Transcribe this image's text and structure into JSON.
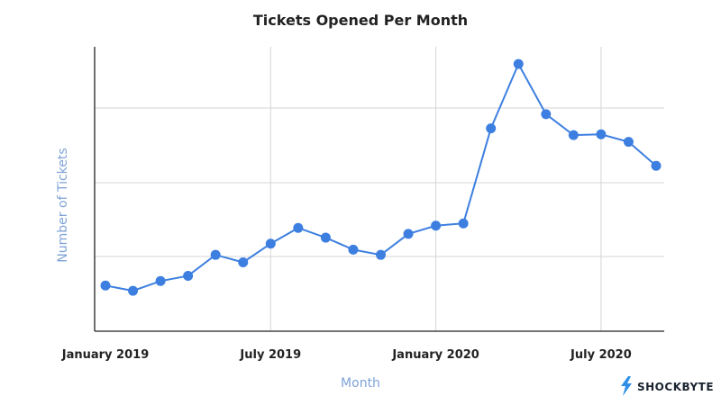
{
  "colors": {
    "series": "#3d7fe0",
    "axis_title": "#7fa3d6",
    "grid": "#d5d5d5",
    "logo_bolt": "#2f8fe6"
  },
  "brand": {
    "name": "SHOCKBYTE",
    "icon": "lightning-bolt-icon"
  },
  "chart_data": {
    "type": "line",
    "title": "Tickets Opened Per Month",
    "xlabel": "Month",
    "ylabel": "Number of Tickets",
    "grid": true,
    "y_tick_labels_visible": false,
    "x_ticks": [
      "January 2019",
      "July 2019",
      "January 2020",
      "July 2020"
    ],
    "categories": [
      "January 2019",
      "February 2019",
      "March 2019",
      "April 2019",
      "May 2019",
      "June 2019",
      "July 2019",
      "August 2019",
      "September 2019",
      "October 2019",
      "November 2019",
      "December 2019",
      "January 2020",
      "February 2020",
      "March 2020",
      "April 2020",
      "May 2020",
      "June 2020",
      "July 2020",
      "August 2020",
      "September 2020"
    ],
    "values": [
      61,
      54,
      67,
      74,
      102,
      92,
      117,
      138,
      125,
      109,
      102,
      130,
      141,
      144,
      271,
      357,
      290,
      262,
      263,
      253,
      221
    ],
    "ylim": [
      0,
      380
    ]
  }
}
